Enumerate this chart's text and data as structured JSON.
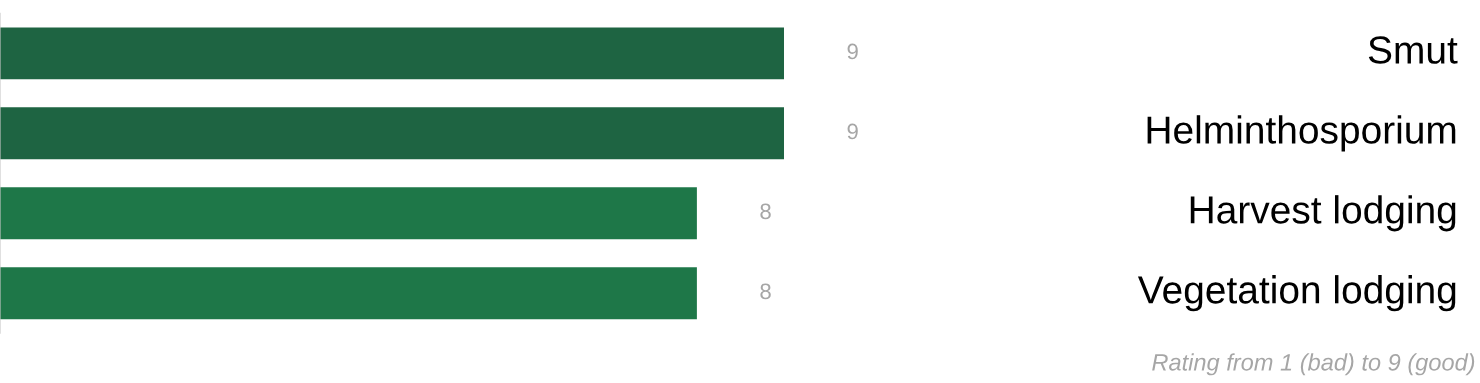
{
  "chart_data": {
    "type": "bar",
    "orientation": "horizontal",
    "categories": [
      "Smut",
      "Helminthosporium",
      "Harvest lodging",
      "Vegetation lodging"
    ],
    "values": [
      9,
      9,
      8,
      8
    ],
    "colors": [
      "#1e6442",
      "#1e6442",
      "#1e7748",
      "#1e7748"
    ],
    "value_labels": [
      "9",
      "9",
      "8",
      "8"
    ],
    "annotations": [
      "Rating from 1 (bad) to 9 (good)"
    ]
  }
}
